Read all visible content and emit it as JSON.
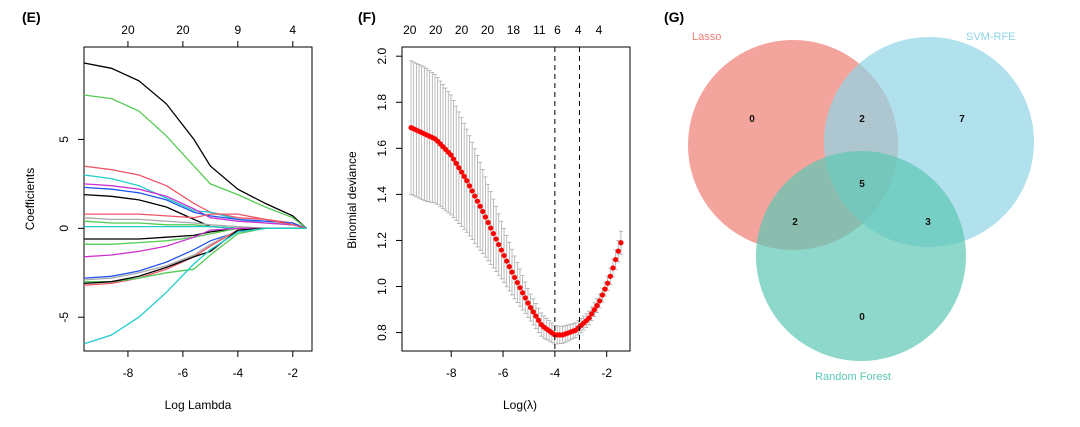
{
  "panels": {
    "e_label": "(E)",
    "f_label": "(F)",
    "g_label": "(G)"
  },
  "chart_data": [
    {
      "type": "line",
      "panel": "(E)",
      "xlabel": "Log Lambda",
      "ylabel": "Coefficients",
      "xlim": [
        -9.6,
        -1.3
      ],
      "ylim": [
        -6.9,
        10.2
      ],
      "x_ticks": [
        -8,
        -6,
        -4,
        -2
      ],
      "x_tick_labels": [
        "-8",
        "-6",
        "-4",
        "-2"
      ],
      "y_ticks": [
        -5,
        0,
        5
      ],
      "y_tick_labels": [
        "-5",
        "0",
        "5"
      ],
      "top_ticks": [
        -8,
        -6,
        -4,
        -2
      ],
      "top_tick_labels": [
        "20",
        "20",
        "9",
        "4"
      ],
      "grid": false,
      "x": [
        -9.6,
        -8.6,
        -7.6,
        -6.6,
        -5.6,
        -5.0,
        -4.0,
        -3.0,
        -2.0,
        -1.5
      ],
      "series": [
        {
          "color": "#000000",
          "values": [
            9.3,
            9.0,
            8.3,
            7.0,
            5.0,
            3.5,
            2.2,
            1.4,
            0.7,
            0.0
          ]
        },
        {
          "color": "#55cc55",
          "values": [
            7.5,
            7.3,
            6.6,
            5.2,
            3.5,
            2.5,
            1.9,
            1.2,
            0.6,
            0.0
          ]
        },
        {
          "color": "#ee5566",
          "values": [
            3.5,
            3.3,
            3.0,
            2.4,
            1.4,
            0.9,
            0.6,
            0.5,
            0.3,
            0.0
          ]
        },
        {
          "color": "#22cccc",
          "values": [
            3.0,
            2.8,
            2.4,
            1.7,
            1.0,
            0.9,
            0.5,
            0.3,
            0.2,
            0.0
          ]
        },
        {
          "color": "#cc33cc",
          "values": [
            2.5,
            2.4,
            2.2,
            1.8,
            1.1,
            0.6,
            0.4,
            0.3,
            0.2,
            0.0
          ]
        },
        {
          "color": "#2255ee",
          "values": [
            2.3,
            2.2,
            2.0,
            1.6,
            0.9,
            0.7,
            0.5,
            0.4,
            0.3,
            0.0
          ]
        },
        {
          "color": "#000000",
          "values": [
            1.9,
            1.8,
            1.6,
            1.2,
            0.5,
            0.1,
            0.0,
            0.0,
            0.0,
            0.0
          ]
        },
        {
          "color": "#ee5566",
          "values": [
            0.8,
            0.8,
            0.8,
            0.7,
            0.6,
            0.8,
            0.8,
            0.5,
            0.2,
            0.0
          ]
        },
        {
          "color": "#aaaaaa",
          "values": [
            0.6,
            0.5,
            0.5,
            0.4,
            0.3,
            0.2,
            0.1,
            0.0,
            0.0,
            0.0
          ]
        },
        {
          "color": "#55cc55",
          "values": [
            0.4,
            0.3,
            0.3,
            0.2,
            0.2,
            0.1,
            0.0,
            0.0,
            0.0,
            0.0
          ]
        },
        {
          "color": "#22cccc",
          "values": [
            0.1,
            0.1,
            0.1,
            0.1,
            0.1,
            0.1,
            0.0,
            0.0,
            0.0,
            0.0
          ]
        },
        {
          "color": "#000000",
          "values": [
            -0.6,
            -0.6,
            -0.6,
            -0.5,
            -0.4,
            -0.2,
            0.0,
            0.0,
            0.0,
            0.0
          ]
        },
        {
          "color": "#55cc55",
          "values": [
            -0.9,
            -0.9,
            -0.8,
            -0.7,
            -0.5,
            -0.3,
            0.0,
            0.0,
            0.0,
            0.0
          ]
        },
        {
          "color": "#cc33cc",
          "values": [
            -1.6,
            -1.5,
            -1.3,
            -1.0,
            -0.5,
            -0.1,
            0.0,
            0.0,
            0.0,
            0.0
          ]
        },
        {
          "color": "#2255ee",
          "values": [
            -2.8,
            -2.7,
            -2.4,
            -1.9,
            -1.2,
            -0.7,
            -0.2,
            0.0,
            0.0,
            0.0
          ]
        },
        {
          "color": "#aaaaaa",
          "values": [
            -2.9,
            -2.8,
            -2.5,
            -2.1,
            -1.5,
            -0.9,
            -0.1,
            0.0,
            0.0,
            0.0
          ]
        },
        {
          "color": "#ee5566",
          "values": [
            -3.2,
            -3.1,
            -2.8,
            -2.3,
            -1.6,
            -1.0,
            -0.1,
            0.0,
            0.0,
            0.0
          ]
        },
        {
          "color": "#55cc55",
          "values": [
            -3.0,
            -3.0,
            -2.8,
            -2.5,
            -2.3,
            -1.5,
            -0.3,
            0.0,
            0.0,
            0.0
          ]
        },
        {
          "color": "#000000",
          "values": [
            -3.1,
            -3.0,
            -2.7,
            -2.2,
            -1.6,
            -1.3,
            -0.1,
            0.0,
            0.0,
            0.0
          ]
        },
        {
          "color": "#22cccc",
          "values": [
            -6.5,
            -6.0,
            -5.0,
            -3.6,
            -2.0,
            -1.2,
            -0.2,
            0.0,
            0.0,
            0.0
          ]
        }
      ]
    },
    {
      "type": "scatter",
      "panel": "(F)",
      "xlabel": "Log(λ)",
      "ylabel": "Binomial deviance",
      "xlim": [
        -9.9,
        -1.1
      ],
      "ylim": [
        0.72,
        2.04
      ],
      "x_ticks": [
        -8,
        -6,
        -4,
        -2
      ],
      "x_tick_labels": [
        "-8",
        "-6",
        "-4",
        "-2"
      ],
      "y_ticks": [
        0.8,
        1.0,
        1.2,
        1.4,
        1.6,
        1.8,
        2.0
      ],
      "y_tick_labels": [
        "0.8",
        "1.0",
        "1.2",
        "1.4",
        "1.6",
        "1.8",
        "2.0"
      ],
      "top_ticks": [
        -9.6,
        -8.6,
        -7.6,
        -6.6,
        -5.6,
        -4.6,
        -3.9,
        -3.1,
        -2.3
      ],
      "top_tick_labels": [
        "20",
        "20",
        "20",
        "20",
        "18",
        "11",
        "6",
        "4",
        "4"
      ],
      "vlines": [
        -4.0,
        -3.05
      ],
      "grid": false,
      "x_start": -9.55,
      "x_end": -1.45,
      "n_points": 80,
      "curve_x": [
        -9.55,
        -8.6,
        -8.0,
        -7.4,
        -6.8,
        -6.2,
        -5.6,
        -5.0,
        -4.5,
        -4.0,
        -3.7,
        -3.2,
        -2.7,
        -2.3,
        -1.9,
        -1.45
      ],
      "curve_y": [
        1.69,
        1.64,
        1.57,
        1.46,
        1.33,
        1.19,
        1.05,
        0.92,
        0.83,
        0.79,
        0.79,
        0.81,
        0.86,
        0.93,
        1.03,
        1.19
      ],
      "err_x": [
        -9.55,
        -9.0,
        -8.0,
        -7.0,
        -6.0,
        -5.0,
        -4.0,
        -3.0,
        -2.0,
        -1.45
      ],
      "err_half": [
        0.29,
        0.29,
        0.26,
        0.2,
        0.12,
        0.06,
        0.04,
        0.03,
        0.03,
        0.05
      ],
      "point_color": "#ff0000",
      "error_color": "#aaaaaa"
    },
    {
      "type": "venn",
      "panel": "(G)",
      "sets": [
        {
          "name": "Lasso",
          "color": "#ee7d73",
          "label_color": "#ee7d73"
        },
        {
          "name": "SVM-RFE",
          "color": "#8ed4e4",
          "label_color": "#8ed4e4"
        },
        {
          "name": "Random Forest",
          "color": "#5cc8b3",
          "label_color": "#5cc8b3"
        }
      ],
      "regions": {
        "lasso_only": "0",
        "lasso_svm": "2",
        "svm_only": "7",
        "all_three": "5",
        "lasso_rf": "2",
        "svm_rf": "3",
        "rf_only": "0"
      }
    }
  ]
}
